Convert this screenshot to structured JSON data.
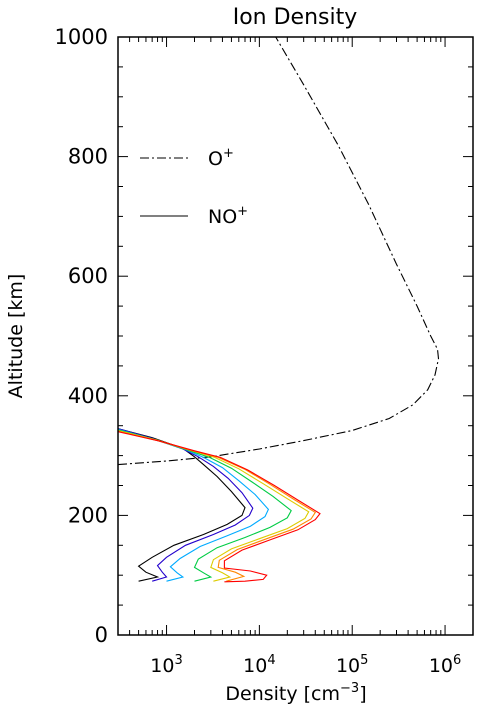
{
  "chart_data": {
    "type": "line",
    "title": "Ion Density",
    "xlabel": "Density [cm",
    "xlabel_sup": "−3",
    "xlabel_end": "]",
    "ylabel": "Altitude [km]",
    "x_scale": "log",
    "xlim": [
      300,
      2000000
    ],
    "ylim": [
      0,
      1000
    ],
    "grid": false,
    "legend_position": "upper-left",
    "x_ticks": [
      {
        "value": 1000,
        "base": "10",
        "exp": "3"
      },
      {
        "value": 10000,
        "base": "10",
        "exp": "4"
      },
      {
        "value": 100000,
        "base": "10",
        "exp": "5"
      },
      {
        "value": 1000000,
        "base": "10",
        "exp": "6"
      }
    ],
    "y_ticks": [
      {
        "value": 0,
        "label": "0"
      },
      {
        "value": 200,
        "label": "200"
      },
      {
        "value": 400,
        "label": "400"
      },
      {
        "value": 600,
        "label": "600"
      },
      {
        "value": 800,
        "label": "800"
      },
      {
        "value": 1000,
        "label": "1000"
      }
    ],
    "legend": [
      {
        "name": "O",
        "sup": "+",
        "style": "dashdot"
      },
      {
        "name": "NO",
        "sup": "+",
        "style": "solid"
      }
    ],
    "series": [
      {
        "name": "O+",
        "style": "dashdot",
        "color": "#000000",
        "points": [
          [
            300,
            285
          ],
          [
            1000,
            291
          ],
          [
            3000,
            298
          ],
          [
            10000,
            311
          ],
          [
            30000,
            325
          ],
          [
            100000,
            342
          ],
          [
            250000,
            362
          ],
          [
            450000,
            385
          ],
          [
            650000,
            410
          ],
          [
            780000,
            435
          ],
          [
            850000,
            462
          ],
          [
            830000,
            478
          ],
          [
            700000,
            500
          ],
          [
            500000,
            550
          ],
          [
            300000,
            620
          ],
          [
            150000,
            720
          ],
          [
            70000,
            820
          ],
          [
            30000,
            920
          ],
          [
            15000,
            1000
          ]
        ]
      },
      {
        "style": "solid",
        "color": "#000000",
        "points": [
          [
            300,
            345
          ],
          [
            700,
            330
          ],
          [
            1500,
            312
          ],
          [
            2000,
            298
          ],
          [
            2500,
            285
          ],
          [
            3500,
            265
          ],
          [
            5000,
            240
          ],
          [
            7000,
            213
          ],
          [
            6500,
            200
          ],
          [
            4500,
            185
          ],
          [
            2500,
            168
          ],
          [
            1200,
            150
          ],
          [
            700,
            130
          ],
          [
            500,
            115
          ],
          [
            600,
            105
          ],
          [
            800,
            97
          ],
          [
            500,
            90
          ]
        ]
      },
      {
        "style": "solid",
        "color": "#2200cc",
        "points": [
          [
            300,
            345
          ],
          [
            700,
            329
          ],
          [
            1500,
            311
          ],
          [
            2200,
            298
          ],
          [
            3200,
            282
          ],
          [
            4600,
            262
          ],
          [
            6500,
            238
          ],
          [
            8500,
            212
          ],
          [
            7800,
            200
          ],
          [
            5500,
            184
          ],
          [
            3200,
            168
          ],
          [
            1600,
            150
          ],
          [
            1000,
            130
          ],
          [
            800,
            116
          ],
          [
            900,
            105
          ],
          [
            1000,
            97
          ],
          [
            700,
            90
          ]
        ]
      },
      {
        "style": "solid",
        "color": "#00aaff",
        "points": [
          [
            300,
            344
          ],
          [
            700,
            328
          ],
          [
            1600,
            310
          ],
          [
            2500,
            297
          ],
          [
            4000,
            280
          ],
          [
            6000,
            258
          ],
          [
            9000,
            235
          ],
          [
            12500,
            210
          ],
          [
            11500,
            198
          ],
          [
            8000,
            182
          ],
          [
            4500,
            166
          ],
          [
            2300,
            148
          ],
          [
            1400,
            128
          ],
          [
            1100,
            114
          ],
          [
            1300,
            104
          ],
          [
            1500,
            97
          ],
          [
            1000,
            90
          ]
        ]
      },
      {
        "style": "solid",
        "color": "#00cc44",
        "points": [
          [
            300,
            343
          ],
          [
            750,
            327
          ],
          [
            1700,
            309
          ],
          [
            2900,
            297
          ],
          [
            5000,
            279
          ],
          [
            8500,
            255
          ],
          [
            14000,
            232
          ],
          [
            22000,
            208
          ],
          [
            20000,
            196
          ],
          [
            13000,
            180
          ],
          [
            7000,
            163
          ],
          [
            3500,
            146
          ],
          [
            2200,
            127
          ],
          [
            2000,
            113
          ],
          [
            2500,
            104
          ],
          [
            3000,
            97
          ],
          [
            2000,
            90
          ]
        ]
      },
      {
        "style": "solid",
        "color": "#ddcc00",
        "points": [
          [
            300,
            342
          ],
          [
            800,
            326
          ],
          [
            1800,
            309
          ],
          [
            3300,
            297
          ],
          [
            6000,
            278
          ],
          [
            11000,
            253
          ],
          [
            20000,
            228
          ],
          [
            34000,
            206
          ],
          [
            31000,
            195
          ],
          [
            20000,
            178
          ],
          [
            10000,
            161
          ],
          [
            5000,
            144
          ],
          [
            3200,
            126
          ],
          [
            3000,
            113
          ],
          [
            4000,
            104
          ],
          [
            4800,
            97
          ],
          [
            3200,
            90
          ]
        ]
      },
      {
        "style": "solid",
        "color": "#ff8800",
        "points": [
          [
            300,
            341
          ],
          [
            800,
            325
          ],
          [
            1900,
            308
          ],
          [
            3600,
            297
          ],
          [
            7000,
            277
          ],
          [
            13000,
            252
          ],
          [
            24000,
            226
          ],
          [
            40000,
            205
          ],
          [
            36000,
            194
          ],
          [
            23000,
            177
          ],
          [
            11500,
            160
          ],
          [
            5800,
            143
          ],
          [
            3700,
            125
          ],
          [
            3600,
            113
          ],
          [
            5500,
            105
          ],
          [
            6800,
            98
          ],
          [
            4400,
            90
          ]
        ]
      },
      {
        "style": "solid",
        "color": "#ff0000",
        "points": [
          [
            300,
            340
          ],
          [
            850,
            324
          ],
          [
            2000,
            308
          ],
          [
            3800,
            297
          ],
          [
            7500,
            276
          ],
          [
            14500,
            250
          ],
          [
            27000,
            224
          ],
          [
            45000,
            203
          ],
          [
            40000,
            193
          ],
          [
            26000,
            176
          ],
          [
            13000,
            159
          ],
          [
            6500,
            142
          ],
          [
            4200,
            124
          ],
          [
            4200,
            112
          ],
          [
            8000,
            107
          ],
          [
            12000,
            100
          ],
          [
            11000,
            93
          ],
          [
            7000,
            90
          ],
          [
            4200,
            89
          ]
        ]
      }
    ]
  }
}
